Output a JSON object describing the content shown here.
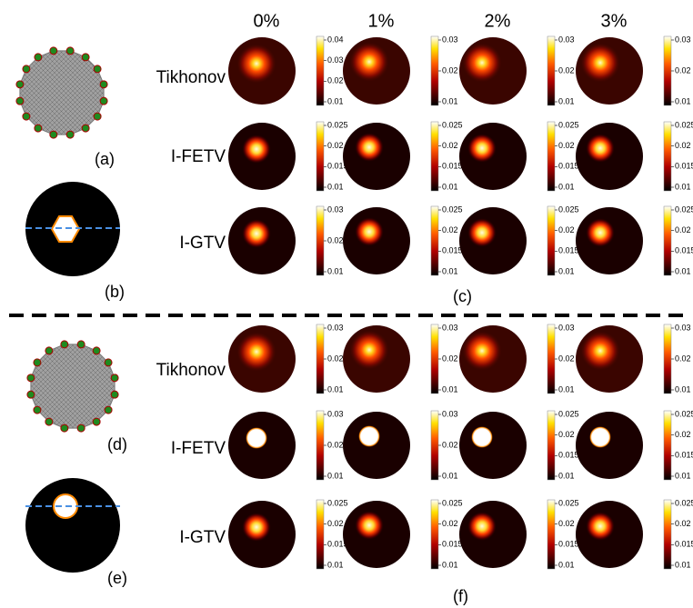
{
  "column_headers": [
    "0%",
    "1%",
    "2%",
    "3%"
  ],
  "panel_labels": {
    "a": "(a)",
    "b": "(b)",
    "c": "(c)",
    "d": "(d)",
    "e": "(e)",
    "f": "(f)"
  },
  "row_labels": {
    "top": [
      "Tikhonov",
      "I-FETV",
      "I-GTV"
    ],
    "bottom": [
      "Tikhonov",
      "I-FETV",
      "I-GTV"
    ]
  },
  "colorbars": {
    "top": [
      [
        [
          "0.04",
          "0.03",
          "0.02",
          "0.01"
        ],
        [
          "0.03",
          "0.02",
          "0.01"
        ],
        [
          "0.03",
          "0.02",
          "0.01"
        ],
        [
          "0.03",
          "0.02",
          "0.01"
        ]
      ],
      [
        [
          "0.025",
          "0.02",
          "0.015",
          "0.01"
        ],
        [
          "0.025",
          "0.02",
          "0.015",
          "0.01"
        ],
        [
          "0.025",
          "0.02",
          "0.015",
          "0.01"
        ],
        [
          "0.025",
          "0.02",
          "0.015",
          "0.01"
        ]
      ],
      [
        [
          "0.03",
          "0.02",
          "0.01"
        ],
        [
          "0.025",
          "0.02",
          "0.015",
          "0.01"
        ],
        [
          "0.025",
          "0.02",
          "0.015",
          "0.01"
        ],
        [
          "0.025",
          "0.02",
          "0.015",
          "0.01"
        ]
      ]
    ],
    "bottom": [
      [
        [
          "0.03",
          "0.02",
          "0.01"
        ],
        [
          "0.03",
          "0.02",
          "0.01"
        ],
        [
          "0.03",
          "0.02",
          "0.01"
        ],
        [
          "0.03",
          "0.02",
          "0.01"
        ]
      ],
      [
        [
          "0.03",
          "0.02",
          "0.01"
        ],
        [
          "0.03",
          "0.02",
          "0.01"
        ],
        [
          "0.025",
          "0.02",
          "0.015",
          "0.01"
        ],
        [
          "0.025",
          "0.02",
          "0.015",
          "0.01"
        ]
      ],
      [
        [
          "0.025",
          "0.02",
          "0.015",
          "0.01"
        ],
        [
          "0.025",
          "0.02",
          "0.015",
          "0.01"
        ],
        [
          "0.025",
          "0.02",
          "0.015",
          "0.01"
        ],
        [
          "0.025",
          "0.02",
          "0.015",
          "0.01"
        ]
      ]
    ]
  }
}
